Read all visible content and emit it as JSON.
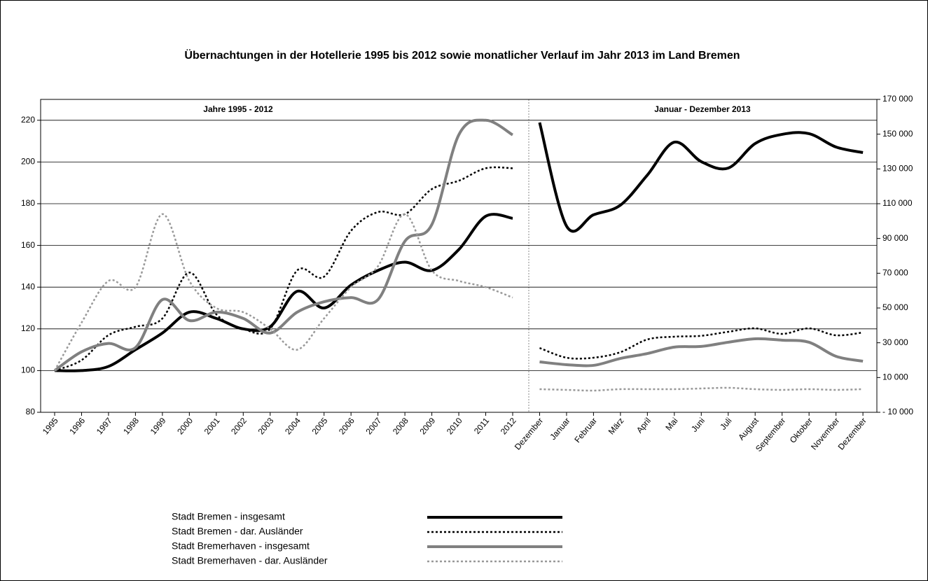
{
  "chart_data": [
    {
      "type": "line",
      "title": "Übernachtungen in der Hotellerie 1995 bis 2012 sowie monatlicher Verlauf im Jahr 2013 im Land Bremen",
      "subtitle": "Jahre 1995 - 2012",
      "categories": [
        "1995",
        "1996",
        "1997",
        "1998",
        "1999",
        "2000",
        "2001",
        "2002",
        "2003",
        "2004",
        "2005",
        "2006",
        "2007",
        "2008",
        "2009",
        "2010",
        "2011",
        "2012"
      ],
      "ylim": [
        80,
        230
      ],
      "yticks": [
        80,
        100,
        120,
        140,
        160,
        180,
        200,
        220
      ],
      "grid": true,
      "series": [
        {
          "name": "Stadt Bremen - insgesamt",
          "color": "#000000",
          "style": "solid",
          "values": [
            100,
            100,
            102,
            110,
            118,
            128,
            125,
            120,
            121,
            138,
            130,
            141,
            148,
            152,
            148,
            158,
            174,
            173
          ]
        },
        {
          "name": "Stadt Bremen - dar. Ausländer",
          "color": "#000000",
          "style": "dotted",
          "values": [
            100,
            105,
            117,
            121,
            125,
            147,
            127,
            120,
            120,
            148,
            145,
            167,
            176,
            175,
            187,
            191,
            197,
            197
          ]
        },
        {
          "name": "Stadt Bremerhaven - insgesamt",
          "color": "#808080",
          "style": "solid",
          "values": [
            100,
            109,
            113,
            111,
            134,
            124,
            128,
            125,
            118,
            128,
            133,
            135,
            134,
            162,
            170,
            213,
            220,
            213
          ]
        },
        {
          "name": "Stadt Bremerhaven - dar. Ausländer",
          "color": "#999999",
          "style": "dotted",
          "values": [
            100,
            123,
            143,
            140,
            175,
            143,
            130,
            128,
            120,
            110,
            125,
            140,
            150,
            175,
            148,
            143,
            140,
            135
          ]
        }
      ]
    },
    {
      "type": "line",
      "subtitle": "Januar - Dezember 2013",
      "categories": [
        "Dezember",
        "Januar",
        "Februar",
        "März",
        "April",
        "Mai",
        "Juni",
        "Juli",
        "August",
        "September",
        "Oktober",
        "November",
        "Dezember"
      ],
      "y2lim": [
        -10000,
        170000
      ],
      "y2ticks": [
        {
          "value": -10000,
          "label": "- 10 000"
        },
        {
          "value": 10000,
          "label": "10 000"
        },
        {
          "value": 30000,
          "label": "30 000"
        },
        {
          "value": 50000,
          "label": "50 000"
        },
        {
          "value": 70000,
          "label": "70 000"
        },
        {
          "value": 90000,
          "label": "90 000"
        },
        {
          "value": 110000,
          "label": "110 000"
        },
        {
          "value": 130000,
          "label": "130 000"
        },
        {
          "value": 150000,
          "label": "150 000"
        },
        {
          "value": 170000,
          "label": "170 000"
        }
      ],
      "series": [
        {
          "color": "#000000",
          "style": "solid",
          "axis": "y2",
          "values": [
            156700,
            97100,
            103600,
            109200,
            126500,
            145400,
            134200,
            130500,
            144600,
            149900,
            150300,
            142600,
            139400
          ]
        },
        {
          "color": "#000000",
          "style": "dotted",
          "axis": "y2",
          "values": [
            27000,
            21400,
            21400,
            24600,
            31900,
            33500,
            34000,
            36300,
            38300,
            35100,
            38300,
            34300,
            35900
          ]
        },
        {
          "color": "#808080",
          "style": "solid",
          "axis": "y2",
          "values": [
            19000,
            17400,
            17000,
            21000,
            23800,
            27500,
            27900,
            30300,
            32300,
            31500,
            30300,
            22200,
            19400
          ]
        },
        {
          "color": "#999999",
          "style": "dotted",
          "axis": "y2",
          "values": [
            3300,
            2900,
            2500,
            3300,
            3300,
            3300,
            3700,
            4100,
            3300,
            2900,
            3300,
            2900,
            3300
          ]
        }
      ]
    }
  ]
}
